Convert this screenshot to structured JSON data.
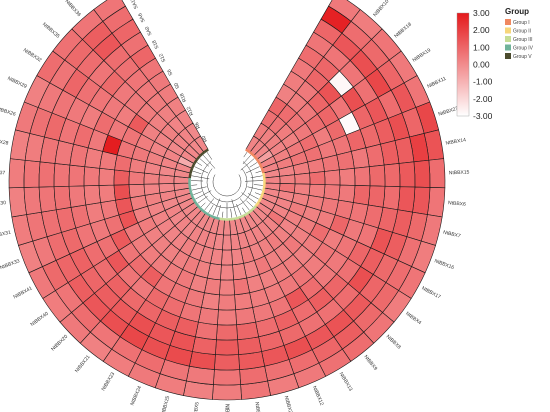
{
  "chart_data": {
    "type": "heatmap",
    "layout": "circular",
    "genes": [
      "NtBBX22",
      "NtBBX10",
      "NtBBX18",
      "NtBBX19",
      "NtBBX11",
      "NtBBX27",
      "NtBBX14",
      "NtBBX15",
      "NtBBX6",
      "NtBBX7",
      "NtBBX16",
      "NtBBX17",
      "NtBBX4",
      "NtBBX8",
      "NtBBX9",
      "NtBBX13",
      "NtBBX12",
      "NtBBX2",
      "NtBBX3",
      "NtBBX1",
      "NtBBX5",
      "NtBBX25",
      "NtBBX24",
      "NtBBX23",
      "NtBBX21",
      "NtBBX20",
      "NtBBX40",
      "NtBBX41",
      "NtBBX33",
      "NtBBX31",
      "NtBBX30",
      "NtBBX37",
      "NtBBX28",
      "NtBBX26",
      "NtBBX29",
      "NtBBX32",
      "NtBBX35",
      "NtBBX36",
      "NtBBX34"
    ],
    "samples": [
      "SA18",
      "SA12",
      "SA6",
      "SA0",
      "S18",
      "S12",
      "S6",
      "S0",
      "R18",
      "R12",
      "R6",
      "R0"
    ],
    "values": [
      [
        0.5,
        2.8,
        1.0,
        0.6,
        0.8,
        0.5,
        0.4,
        0.3,
        1.0,
        0.7,
        0.4,
        0.2
      ],
      [
        0.4,
        0.8,
        1.4,
        0.6,
        1.0,
        1.0,
        0.5,
        0.4,
        0.8,
        0.6,
        0.3,
        0.2
      ],
      [
        0.6,
        0.9,
        1.6,
        0.6,
        -2.8,
        1.5,
        1.0,
        0.5,
        0.6,
        0.4,
        0.3,
        0.1
      ],
      [
        0.5,
        1.0,
        1.8,
        0.7,
        1.6,
        0.6,
        1.0,
        0.8,
        0.5,
        0.3,
        0.2,
        -0.5
      ],
      [
        0.6,
        1.4,
        0.8,
        1.4,
        1.0,
        -2.9,
        0.9,
        0.4,
        0.8,
        0.5,
        0.3,
        0.2
      ],
      [
        1.8,
        1.0,
        1.6,
        1.2,
        0.9,
        1.0,
        0.6,
        0.5,
        0.7,
        0.6,
        0.4,
        0.2
      ],
      [
        1.5,
        2.0,
        1.2,
        1.2,
        0.8,
        0.5,
        0.7,
        0.6,
        0.5,
        0.4,
        0.2,
        0.1
      ],
      [
        0.8,
        1.6,
        1.3,
        0.9,
        0.9,
        0.6,
        0.4,
        0.5,
        0.8,
        0.4,
        0.3,
        0.2
      ],
      [
        0.6,
        1.4,
        1.4,
        0.8,
        1.0,
        1.0,
        0.5,
        0.5,
        0.4,
        0.3,
        0.6,
        0.2
      ],
      [
        0.5,
        0.9,
        1.2,
        1.0,
        0.8,
        0.6,
        0.6,
        0.5,
        0.4,
        0.3,
        0.2,
        0.1
      ],
      [
        0.4,
        0.7,
        1.2,
        1.5,
        0.6,
        0.5,
        1.0,
        0.4,
        0.3,
        0.4,
        0.2,
        0.1
      ],
      [
        0.6,
        0.8,
        0.9,
        1.2,
        1.0,
        0.6,
        0.4,
        0.8,
        0.4,
        0.3,
        0.2,
        0.1
      ],
      [
        0.4,
        0.9,
        1.0,
        1.6,
        0.7,
        0.5,
        0.6,
        0.4,
        0.3,
        0.2,
        0.6,
        0.1
      ],
      [
        0.6,
        0.9,
        1.3,
        0.8,
        1.0,
        0.5,
        0.4,
        0.3,
        0.5,
        0.3,
        0.2,
        0.1
      ],
      [
        0.8,
        1.2,
        1.5,
        0.7,
        1.2,
        0.8,
        0.6,
        0.4,
        0.3,
        0.4,
        0.2,
        0.1
      ],
      [
        0.7,
        1.0,
        1.4,
        0.7,
        0.8,
        1.4,
        0.5,
        0.4,
        0.3,
        0.3,
        0.2,
        0.1
      ],
      [
        0.5,
        0.8,
        1.6,
        0.9,
        1.1,
        0.6,
        0.4,
        0.3,
        0.5,
        0.2,
        0.2,
        0.1
      ],
      [
        0.4,
        0.7,
        1.4,
        1.0,
        0.8,
        0.5,
        0.4,
        0.3,
        0.2,
        0.4,
        0.2,
        0.1
      ],
      [
        0.6,
        0.8,
        1.3,
        1.2,
        1.0,
        0.5,
        0.4,
        0.6,
        0.3,
        0.2,
        0.2,
        0.1
      ],
      [
        0.4,
        0.6,
        1.2,
        1.3,
        0.9,
        0.4,
        0.4,
        0.3,
        0.2,
        0.2,
        0.1,
        0.1
      ],
      [
        0.3,
        0.5,
        1.6,
        1.1,
        0.7,
        0.5,
        0.3,
        0.4,
        0.2,
        0.2,
        0.1,
        0.1
      ],
      [
        0.4,
        0.6,
        1.7,
        1.5,
        1.2,
        0.6,
        0.5,
        0.3,
        0.3,
        0.2,
        0.2,
        0.1
      ],
      [
        0.5,
        0.8,
        1.6,
        1.4,
        1.2,
        0.8,
        0.6,
        0.5,
        0.4,
        0.2,
        0.2,
        0.1
      ],
      [
        0.4,
        0.7,
        1.8,
        1.6,
        1.0,
        0.9,
        0.6,
        0.4,
        0.3,
        0.3,
        0.2,
        0.1
      ],
      [
        0.3,
        0.6,
        1.6,
        1.3,
        0.9,
        0.5,
        1.2,
        0.4,
        0.3,
        0.2,
        0.1,
        0.1
      ],
      [
        0.5,
        0.8,
        1.4,
        1.2,
        1.1,
        0.6,
        0.8,
        0.4,
        0.3,
        0.2,
        0.2,
        0.1
      ],
      [
        0.4,
        0.6,
        1.2,
        1.0,
        0.8,
        1.4,
        0.6,
        0.4,
        0.3,
        0.2,
        0.1,
        0.1
      ],
      [
        0.5,
        0.9,
        1.0,
        1.1,
        0.8,
        0.7,
        1.3,
        0.5,
        0.4,
        0.2,
        0.2,
        0.1
      ],
      [
        0.3,
        0.5,
        0.8,
        0.9,
        0.6,
        0.5,
        0.7,
        1.5,
        0.3,
        0.2,
        0.1,
        0.1
      ],
      [
        0.4,
        0.6,
        0.7,
        0.8,
        0.7,
        0.4,
        0.5,
        1.4,
        0.4,
        0.3,
        0.2,
        0.1
      ],
      [
        0.3,
        0.5,
        0.6,
        0.7,
        0.5,
        0.4,
        0.4,
        1.6,
        0.3,
        0.2,
        0.1,
        0.1
      ],
      [
        0.4,
        0.6,
        0.7,
        0.6,
        0.6,
        0.5,
        0.4,
        1.2,
        0.5,
        0.3,
        0.2,
        0.1
      ],
      [
        0.3,
        0.4,
        0.6,
        0.5,
        0.6,
        0.4,
        0.5,
        0.8,
        0.4,
        0.2,
        0.1,
        0.1
      ],
      [
        0.5,
        0.7,
        0.9,
        0.6,
        0.8,
        0.5,
        2.9,
        0.6,
        0.5,
        0.3,
        0.2,
        0.1
      ],
      [
        0.3,
        0.5,
        0.6,
        0.5,
        0.4,
        0.8,
        0.5,
        0.6,
        0.4,
        0.2,
        0.2,
        -0.8
      ],
      [
        0.8,
        0.6,
        1.0,
        0.7,
        0.6,
        0.5,
        0.4,
        1.3,
        0.3,
        0.2,
        0.1,
        0.1
      ],
      [
        0.7,
        0.9,
        0.8,
        0.6,
        0.9,
        0.5,
        0.5,
        0.4,
        0.3,
        0.3,
        0.2,
        0.1
      ],
      [
        0.6,
        1.2,
        1.4,
        0.8,
        0.7,
        0.6,
        0.5,
        0.4,
        0.3,
        0.2,
        0.2,
        0.1
      ],
      [
        0.6,
        0.8,
        1.0,
        0.7,
        1.0,
        0.6,
        0.5,
        0.4,
        0.3,
        0.2,
        0.1,
        0.1
      ]
    ],
    "color_scale": {
      "min": -3.0,
      "max": 3.0,
      "low_color": "#ffffff",
      "high_color": "#e4191c",
      "ticks": [
        "3.00",
        "2.00",
        "1.00",
        "0.00",
        "-1.00",
        "-2.00",
        "-3.00"
      ]
    },
    "legend": {
      "title": "Group",
      "groups": [
        {
          "label": "Group I",
          "color": "#f08860"
        },
        {
          "label": "Group II",
          "color": "#f7d67a"
        },
        {
          "label": "Group III",
          "color": "#c6dd96"
        },
        {
          "label": "Group IV",
          "color": "#6fb39a"
        },
        {
          "label": "Group V",
          "color": "#4c4c2e"
        }
      ]
    },
    "gene_group_index": [
      0,
      0,
      0,
      0,
      0,
      0,
      1,
      1,
      1,
      1,
      1,
      1,
      1,
      2,
      2,
      2,
      2,
      2,
      2,
      2,
      2,
      3,
      3,
      3,
      3,
      3,
      3,
      3,
      3,
      3,
      3,
      3,
      4,
      4,
      4,
      4,
      4,
      4,
      4
    ]
  }
}
